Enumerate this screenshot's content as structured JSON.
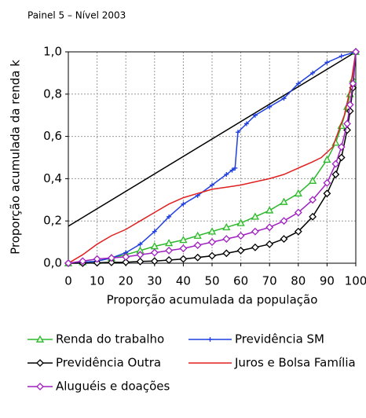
{
  "chart_data": {
    "type": "line",
    "title": "Painel 5 – Nível 2003",
    "xlabel": "Proporção acumulada da população",
    "ylabel": "Proporção acumulada da renda k",
    "xlim": [
      0,
      100
    ],
    "ylim": [
      0,
      1
    ],
    "xticks": [
      0,
      10,
      20,
      30,
      40,
      50,
      60,
      70,
      80,
      90,
      100
    ],
    "yticks": [
      {
        "value": 0,
        "label": "0,0"
      },
      {
        "value": 0.2,
        "label": "0,2"
      },
      {
        "value": 0.4,
        "label": "0,4"
      },
      {
        "value": 0.6,
        "label": "0,6"
      },
      {
        "value": 0.8,
        "label": "0,8"
      },
      {
        "value": 1,
        "label": "1,0"
      }
    ],
    "grid": true,
    "reference_line": {
      "color": "#000000",
      "x": [
        0,
        100
      ],
      "values": [
        0.175,
        1.0
      ]
    },
    "series": [
      {
        "name": "Renda do trabalho",
        "color": "#2db82d",
        "marker": "triangle",
        "x": [
          0,
          5,
          10,
          15,
          20,
          25,
          30,
          35,
          40,
          45,
          50,
          55,
          60,
          65,
          70,
          75,
          80,
          85,
          90,
          93,
          95,
          97,
          98,
          99,
          100
        ],
        "values": [
          0,
          0.005,
          0.01,
          0.025,
          0.04,
          0.06,
          0.08,
          0.095,
          0.11,
          0.13,
          0.15,
          0.17,
          0.19,
          0.22,
          0.25,
          0.29,
          0.33,
          0.39,
          0.49,
          0.57,
          0.65,
          0.74,
          0.8,
          0.87,
          1.0
        ]
      },
      {
        "name": "Previdência SM",
        "color": "#1f3fe0",
        "marker": "plus",
        "x": [
          0,
          5,
          10,
          15,
          20,
          25,
          30,
          35,
          40,
          45,
          50,
          55,
          57,
          58,
          59,
          62,
          65,
          70,
          75,
          80,
          85,
          90,
          95,
          100
        ],
        "values": [
          0,
          0.003,
          0.01,
          0.025,
          0.05,
          0.09,
          0.15,
          0.22,
          0.28,
          0.32,
          0.37,
          0.42,
          0.44,
          0.45,
          0.62,
          0.66,
          0.7,
          0.74,
          0.78,
          0.85,
          0.9,
          0.95,
          0.98,
          1.0
        ]
      },
      {
        "name": "Previdência Outra",
        "color": "#000000",
        "marker": "diamond",
        "x": [
          0,
          5,
          10,
          15,
          20,
          25,
          30,
          35,
          40,
          45,
          50,
          55,
          60,
          65,
          70,
          75,
          80,
          85,
          90,
          93,
          95,
          97,
          98,
          99,
          100
        ],
        "values": [
          0,
          0,
          0.002,
          0.004,
          0.005,
          0.008,
          0.01,
          0.015,
          0.02,
          0.027,
          0.035,
          0.047,
          0.06,
          0.075,
          0.09,
          0.115,
          0.15,
          0.22,
          0.33,
          0.42,
          0.5,
          0.63,
          0.72,
          0.83,
          1.0
        ]
      },
      {
        "name": "Juros e Bolsa Família",
        "color": "#e02020",
        "marker": "none",
        "x": [
          0,
          5,
          10,
          15,
          20,
          25,
          30,
          35,
          40,
          45,
          50,
          55,
          60,
          65,
          70,
          75,
          80,
          85,
          88,
          92,
          96,
          98,
          100
        ],
        "values": [
          0,
          0.04,
          0.09,
          0.13,
          0.16,
          0.2,
          0.24,
          0.28,
          0.31,
          0.33,
          0.35,
          0.36,
          0.37,
          0.385,
          0.4,
          0.42,
          0.45,
          0.48,
          0.5,
          0.55,
          0.7,
          0.82,
          1.0
        ]
      },
      {
        "name": "Aluguéis e doações",
        "color": "#a020c0",
        "marker": "diamond",
        "x": [
          0,
          5,
          10,
          15,
          20,
          25,
          30,
          35,
          40,
          45,
          50,
          55,
          60,
          65,
          70,
          75,
          80,
          85,
          90,
          93,
          95,
          97,
          98,
          99,
          100
        ],
        "values": [
          0,
          0.01,
          0.02,
          0.025,
          0.03,
          0.04,
          0.05,
          0.06,
          0.07,
          0.085,
          0.1,
          0.115,
          0.13,
          0.15,
          0.17,
          0.2,
          0.24,
          0.3,
          0.38,
          0.47,
          0.55,
          0.66,
          0.75,
          0.85,
          1.0
        ]
      }
    ]
  }
}
